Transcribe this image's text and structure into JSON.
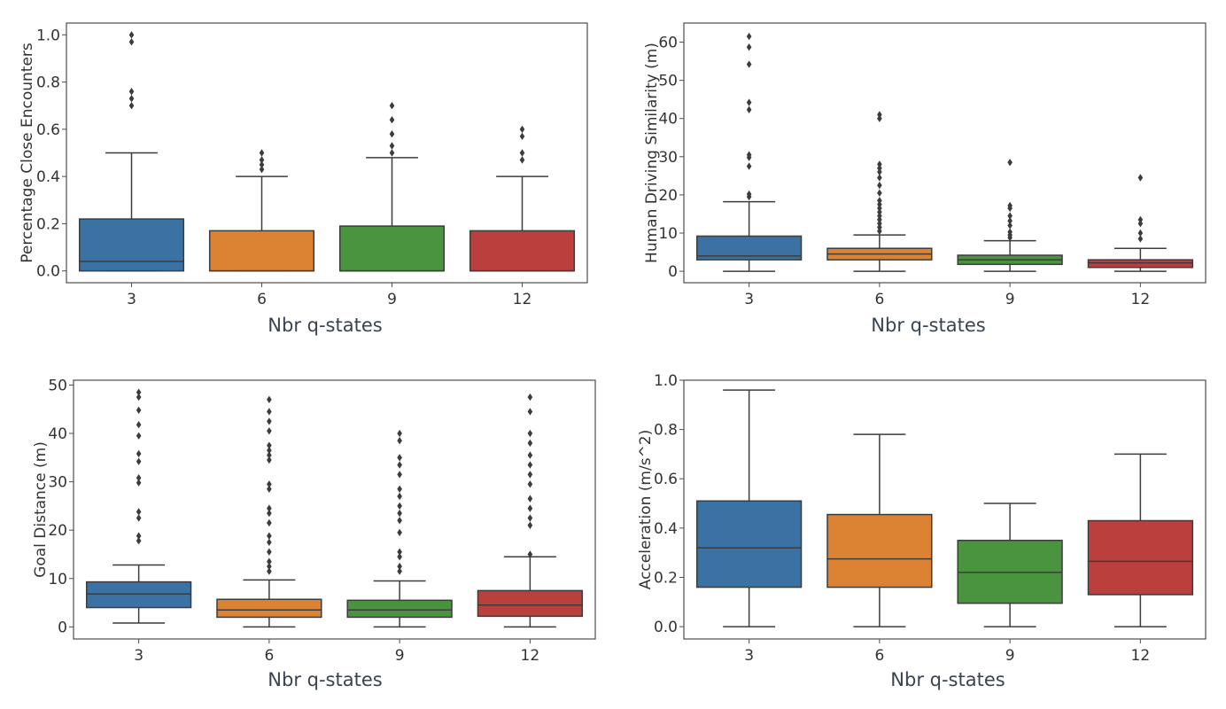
{
  "chart_data": [
    {
      "type": "box",
      "title": "",
      "xlabel": "Nbr q-states",
      "ylabel": "Percentage Close Encounters",
      "ylim": [
        -0.05,
        1.05
      ],
      "yticks": [
        0.0,
        0.2,
        0.4,
        0.6,
        0.8,
        1.0
      ],
      "ytick_labels": [
        "0.0",
        "0.2",
        "0.4",
        "0.6",
        "0.8",
        "1.0"
      ],
      "categories": [
        "3",
        "6",
        "9",
        "12"
      ],
      "colors": [
        "#3a72a4",
        "#dc8233",
        "#4a9440",
        "#bb3f3d"
      ],
      "boxes": [
        {
          "whislo": 0.0,
          "q1": 0.0,
          "med": 0.04,
          "q3": 0.22,
          "whishi": 0.5,
          "fliers": [
            0.7,
            0.73,
            0.76,
            0.97,
            1.0
          ]
        },
        {
          "whislo": 0.0,
          "q1": 0.0,
          "med": 0.0,
          "q3": 0.17,
          "whishi": 0.4,
          "fliers": [
            0.43,
            0.45,
            0.47,
            0.5
          ]
        },
        {
          "whislo": 0.0,
          "q1": 0.0,
          "med": 0.0,
          "q3": 0.19,
          "whishi": 0.48,
          "fliers": [
            0.5,
            0.53,
            0.58,
            0.64,
            0.7
          ]
        },
        {
          "whislo": 0.0,
          "q1": 0.0,
          "med": 0.0,
          "q3": 0.17,
          "whishi": 0.4,
          "fliers": [
            0.47,
            0.5,
            0.57,
            0.6
          ]
        }
      ]
    },
    {
      "type": "box",
      "title": "",
      "xlabel": "Nbr q-states",
      "ylabel": "Human Driving Similarity (m)",
      "ylim": [
        -3,
        65
      ],
      "yticks": [
        0,
        10,
        20,
        30,
        40,
        50,
        60
      ],
      "ytick_labels": [
        "0",
        "10",
        "20",
        "30",
        "40",
        "50",
        "60"
      ],
      "categories": [
        "3",
        "6",
        "9",
        "12"
      ],
      "colors": [
        "#3a72a4",
        "#dc8233",
        "#4a9440",
        "#bb3f3d"
      ],
      "boxes": [
        {
          "whislo": 0.0,
          "q1": 3.0,
          "med": 4.0,
          "q3": 9.2,
          "whishi": 18.2,
          "fliers": [
            19.5,
            20.2,
            27.5,
            29.8,
            30.5,
            42.3,
            44.2,
            54.2,
            58.7,
            61.5
          ]
        },
        {
          "whislo": 0.0,
          "q1": 3.0,
          "med": 4.5,
          "q3": 6.0,
          "whishi": 9.5,
          "fliers": [
            10.5,
            11.5,
            12.5,
            13.5,
            14.5,
            15.5,
            16.5,
            17.5,
            18.5,
            20.5,
            22.5,
            24.5,
            26.0,
            27.0,
            28.0,
            40.0,
            41.0
          ]
        },
        {
          "whislo": 0.0,
          "q1": 1.8,
          "med": 3.0,
          "q3": 4.2,
          "whishi": 8.0,
          "fliers": [
            8.8,
            9.5,
            10.3,
            12.0,
            13.2,
            14.5,
            16.5,
            17.2,
            28.5
          ]
        },
        {
          "whislo": 0.0,
          "q1": 1.0,
          "med": 2.2,
          "q3": 3.0,
          "whishi": 6.0,
          "fliers": [
            8.5,
            10.0,
            12.5,
            13.5,
            24.5
          ]
        }
      ]
    },
    {
      "type": "box",
      "title": "",
      "xlabel": "Nbr q-states",
      "ylabel": "Goal Distance (m)",
      "ylim": [
        -2.5,
        51
      ],
      "yticks": [
        0,
        10,
        20,
        30,
        40,
        50
      ],
      "ytick_labels": [
        "0",
        "10",
        "20",
        "30",
        "40",
        "50"
      ],
      "categories": [
        "3",
        "6",
        "9",
        "12"
      ],
      "colors": [
        "#3a72a4",
        "#dc8233",
        "#4a9440",
        "#bb3f3d"
      ],
      "boxes": [
        {
          "whislo": 0.8,
          "q1": 4.0,
          "med": 6.8,
          "q3": 9.3,
          "whishi": 12.8,
          "fliers": [
            17.8,
            18.8,
            22.5,
            23.8,
            29.8,
            30.8,
            34.2,
            35.8,
            39.5,
            41.8,
            44.8,
            47.5,
            48.5
          ]
        },
        {
          "whislo": 0.0,
          "q1": 2.0,
          "med": 3.5,
          "q3": 5.7,
          "whishi": 9.7,
          "fliers": [
            11.5,
            12.5,
            13.5,
            15.5,
            17.5,
            18.8,
            21.5,
            23.5,
            24.5,
            28.5,
            29.5,
            34.5,
            35.5,
            36.5,
            37.5,
            40.5,
            42.5,
            44.5,
            47.0
          ]
        },
        {
          "whislo": 0.0,
          "q1": 2.0,
          "med": 3.5,
          "q3": 5.5,
          "whishi": 9.5,
          "fliers": [
            11.5,
            12.5,
            14.5,
            15.5,
            19.5,
            22.0,
            23.5,
            25.0,
            27.0,
            28.5,
            31.5,
            33.5,
            35.0,
            38.5,
            40.0
          ]
        },
        {
          "whislo": 0.0,
          "q1": 2.2,
          "med": 4.5,
          "q3": 7.5,
          "whishi": 14.5,
          "fliers": [
            15.0,
            21.0,
            22.5,
            24.5,
            26.5,
            29.5,
            31.5,
            33.5,
            35.5,
            38.0,
            40.0,
            44.5,
            47.5
          ]
        }
      ]
    },
    {
      "type": "box",
      "title": "",
      "xlabel": "Nbr q-states",
      "ylabel": "Acceleration (m/s^2)",
      "ylim": [
        -0.05,
        1.0
      ],
      "yticks": [
        0.0,
        0.2,
        0.4,
        0.6,
        0.8,
        1.0
      ],
      "ytick_labels": [
        "0.0",
        "0.2",
        "0.4",
        "0.6",
        "0.8",
        "1.0"
      ],
      "categories": [
        "3",
        "6",
        "9",
        "12"
      ],
      "colors": [
        "#3a72a4",
        "#dc8233",
        "#4a9440",
        "#bb3f3d"
      ],
      "boxes": [
        {
          "whislo": 0.0,
          "q1": 0.16,
          "med": 0.32,
          "q3": 0.51,
          "whishi": 0.96,
          "fliers": []
        },
        {
          "whislo": 0.0,
          "q1": 0.16,
          "med": 0.275,
          "q3": 0.455,
          "whishi": 0.78,
          "fliers": []
        },
        {
          "whislo": 0.0,
          "q1": 0.095,
          "med": 0.22,
          "q3": 0.35,
          "whishi": 0.5,
          "fliers": []
        },
        {
          "whislo": 0.0,
          "q1": 0.13,
          "med": 0.265,
          "q3": 0.43,
          "whishi": 0.7,
          "fliers": []
        }
      ]
    }
  ]
}
